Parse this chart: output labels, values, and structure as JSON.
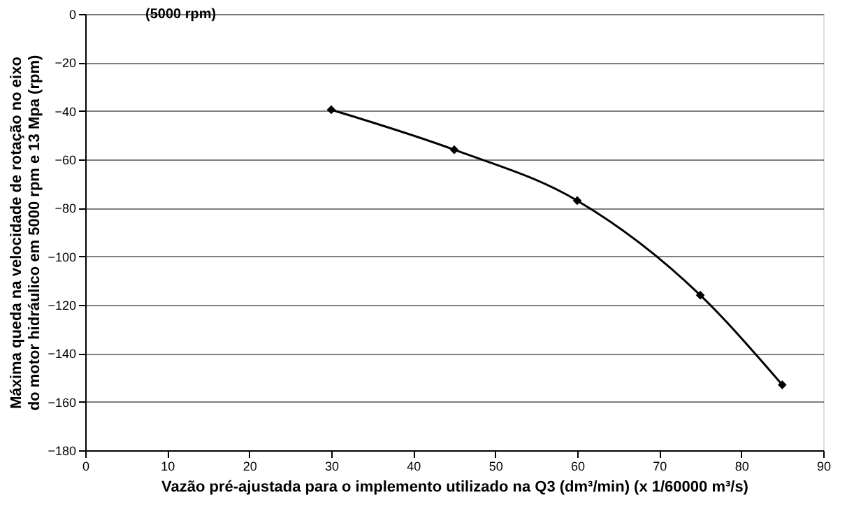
{
  "chart_data": {
    "type": "line",
    "xlabel": "Vazão pré-ajustada para o implemento utilizado na Q3 (dm³/min) (x 1/60000 m³/s)",
    "ylabel": "Máxima queda na velocidade de rotação no eixo do motor hidráulico em 5000 rpm e 13 Mpa (rpm)",
    "annotations": [
      "(5000 rpm)"
    ],
    "x": [
      30,
      45,
      60,
      75,
      85
    ],
    "series": [
      {
        "color": "#000000",
        "values": [
          -39.5,
          -56,
          -77,
          -116,
          -153
        ]
      }
    ],
    "xlim": [
      0,
      90
    ],
    "xticks": [
      0,
      10,
      20,
      30,
      40,
      50,
      60,
      70,
      80,
      90
    ],
    "ylim": [
      -180,
      0
    ],
    "yticks": [
      0,
      -20,
      -40,
      -60,
      -80,
      -100,
      -120,
      -140,
      -160,
      -180
    ],
    "grid": "y",
    "marker": "diamond",
    "line_style": "solid",
    "legend": false
  }
}
